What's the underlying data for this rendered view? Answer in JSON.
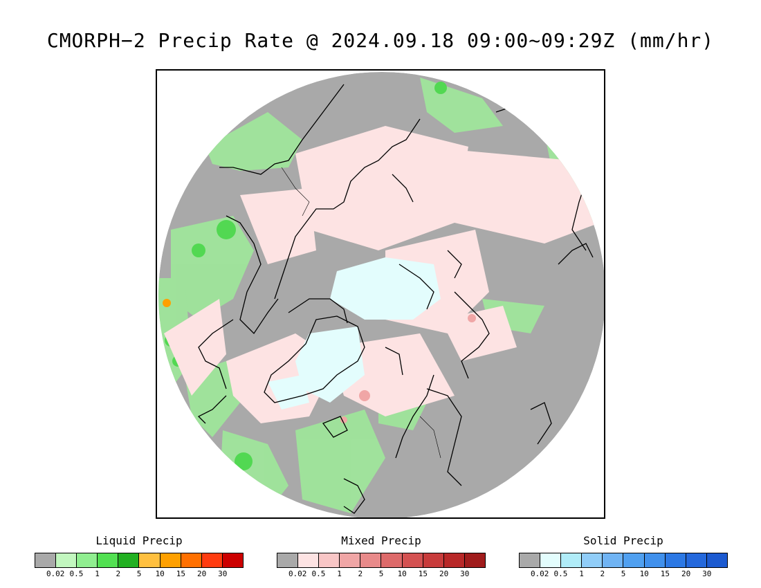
{
  "title": "CMORPH−2 Precip Rate @ 2024.09.18 09:00~09:29Z (mm/hr)",
  "map": {
    "colors": {
      "background": "#a9a9a9",
      "ocean_outside": "#ffffff",
      "liquid_light": "#b7f3b4",
      "liquid": "#90ee90",
      "mixed_light": "#fde3e3",
      "solid_light": "#e3fdfd",
      "coast": "#000000"
    }
  },
  "legends": [
    {
      "title": "Liquid Precip",
      "ticks": [
        "0.02",
        "0.5",
        "1",
        "2",
        "5",
        "10",
        "15",
        "20",
        "30"
      ],
      "colors": [
        "#a9a9a9",
        "#c2f7bf",
        "#90ee90",
        "#52e052",
        "#22b022",
        "#ffc040",
        "#ffa000",
        "#ff7000",
        "#ff3c10",
        "#cc0000"
      ]
    },
    {
      "title": "Mixed Precip",
      "ticks": [
        "0.02",
        "0.5",
        "1",
        "2",
        "5",
        "10",
        "15",
        "20",
        "30"
      ],
      "colors": [
        "#a9a9a9",
        "#fde3e3",
        "#f8c6c6",
        "#f0a6a6",
        "#e88a8a",
        "#dd6a6a",
        "#d45252",
        "#c83c3c",
        "#b82828",
        "#a01c1c"
      ]
    },
    {
      "title": "Solid Precip",
      "ticks": [
        "0.02",
        "0.5",
        "1",
        "2",
        "5",
        "10",
        "15",
        "20",
        "30"
      ],
      "colors": [
        "#a9a9a9",
        "#e3fdfd",
        "#b0ecf8",
        "#90cdf8",
        "#70b4f4",
        "#50a0f0",
        "#4090ec",
        "#2c78e4",
        "#2468dc",
        "#1c5ad0"
      ]
    }
  ]
}
